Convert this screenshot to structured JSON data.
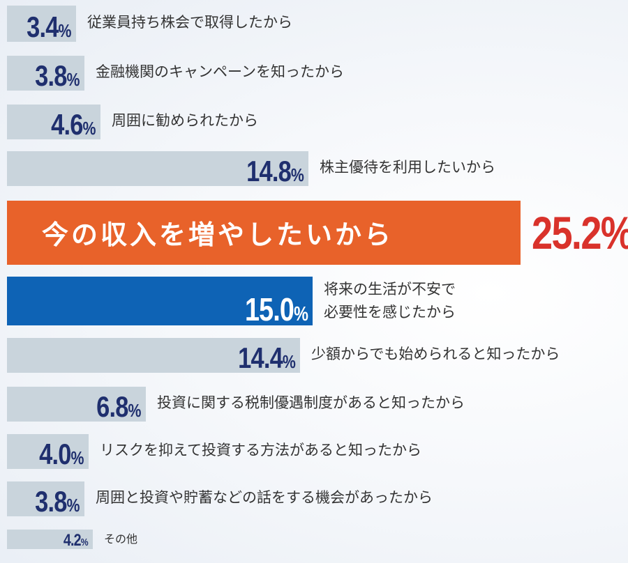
{
  "chart_data": {
    "type": "bar",
    "orientation": "horizontal",
    "unit": "%",
    "colors": {
      "default": "#c9d4dc",
      "highlight_orange": "#e8622a",
      "highlight_blue": "#0e63b5",
      "value_text": "#1f2f6e",
      "highlight_value_text": "#d9322b"
    },
    "items": [
      {
        "label": "従業員持ち株会で取得したから",
        "value": 3.4,
        "style": "default"
      },
      {
        "label": "金融機関のキャンペーンを知ったから",
        "value": 3.8,
        "style": "default"
      },
      {
        "label": "周囲に勧められたから",
        "value": 4.6,
        "style": "default"
      },
      {
        "label": "株主優待を利用したいから",
        "value": 14.8,
        "style": "default"
      },
      {
        "label": "今の収入を増やしたいから",
        "value": 25.2,
        "style": "orange"
      },
      {
        "label": "将来の生活が不安で\n必要性を感じたから",
        "value": 15.0,
        "style": "blue"
      },
      {
        "label": "少額からでも始められると知ったから",
        "value": 14.4,
        "style": "default"
      },
      {
        "label": "投資に関する税制優遇制度があると知ったから",
        "value": 6.8,
        "style": "default"
      },
      {
        "label": "リスクを抑えて投資する方法があると知ったから",
        "value": 4.0,
        "style": "default"
      },
      {
        "label": "周囲と投資や貯蓄などの話をする機会があったから",
        "value": 3.8,
        "style": "default"
      },
      {
        "label": "その他",
        "value": 4.2,
        "style": "default"
      }
    ]
  }
}
